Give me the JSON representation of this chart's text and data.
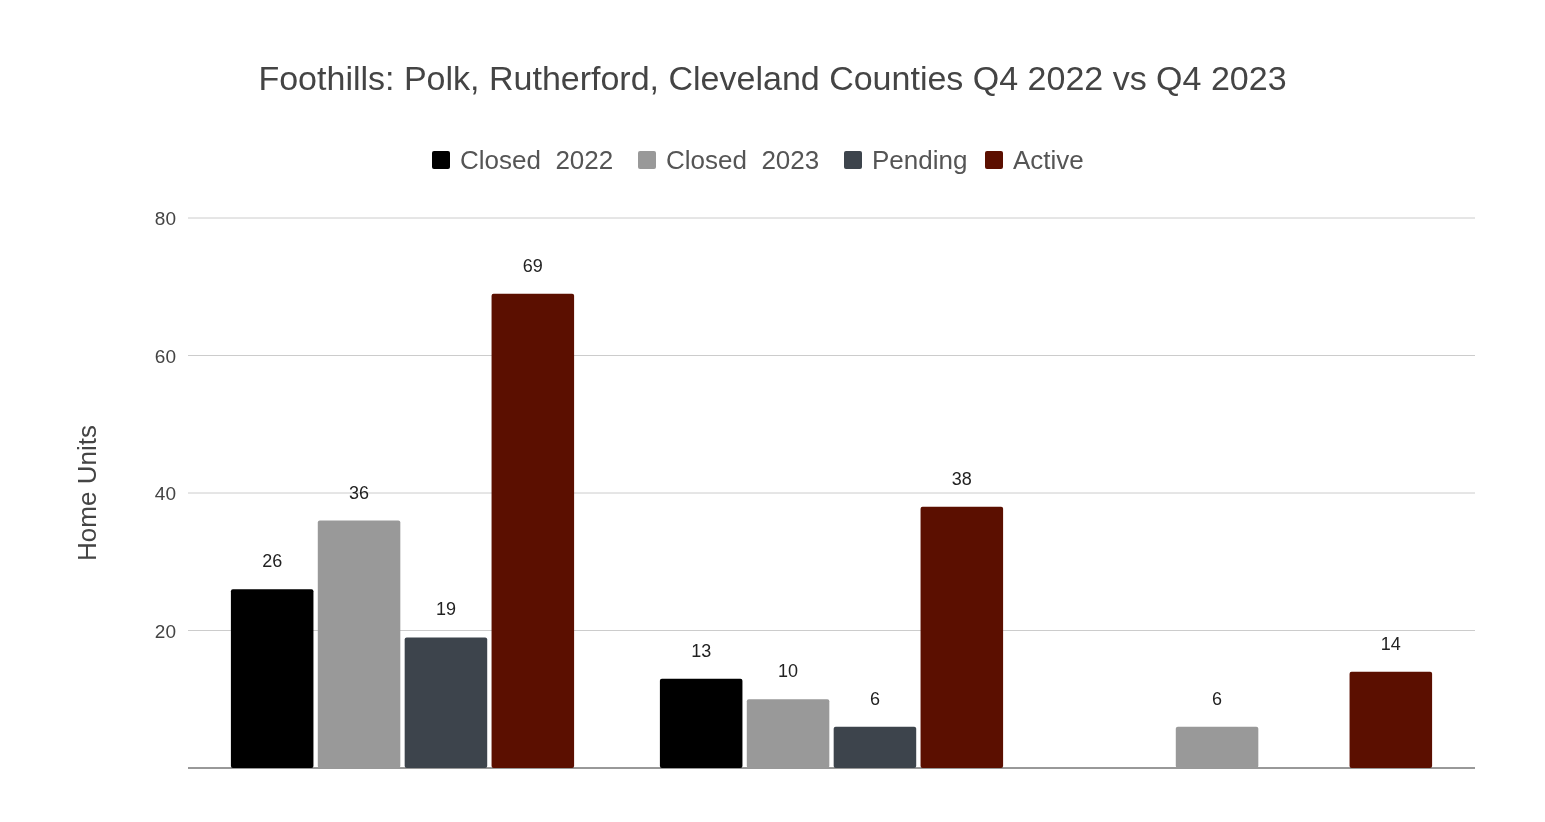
{
  "chart_data": {
    "type": "bar",
    "title": "Foothills: Polk, Rutherford, Cleveland Counties Q4 2022 vs Q4 2023",
    "ylabel": "Home Units",
    "categories": [
      null,
      null,
      null
    ],
    "series": [
      {
        "name": "Closed  2022",
        "color": "#000000",
        "values": [
          26,
          13,
          null
        ]
      },
      {
        "name": "Closed  2023",
        "color": "#999999",
        "values": [
          36,
          10,
          6
        ]
      },
      {
        "name": "Pending",
        "color": "#3d444c",
        "values": [
          19,
          6,
          null
        ]
      },
      {
        "name": "Active",
        "color": "#5b0f00",
        "values": [
          69,
          38,
          14
        ]
      }
    ],
    "ylim": [
      0,
      80
    ],
    "yticks": [
      20,
      40,
      60,
      80
    ],
    "grid": "y",
    "legend": "top",
    "data_labels": true
  }
}
